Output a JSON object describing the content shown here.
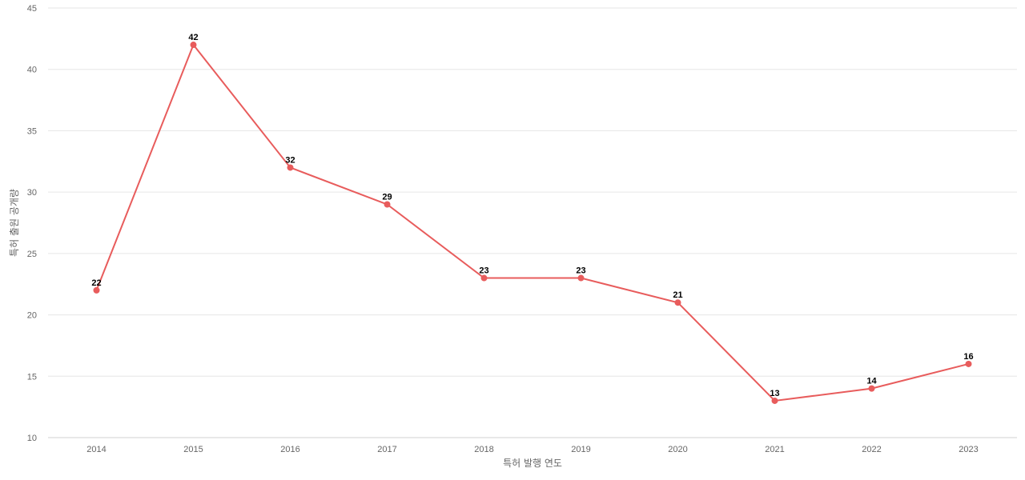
{
  "chart_data": {
    "type": "line",
    "title": "",
    "xlabel": "특허 발행 연도",
    "ylabel": "특허 출원 공개량",
    "x": [
      "2014",
      "2015",
      "2016",
      "2017",
      "2018",
      "2019",
      "2020",
      "2021",
      "2022",
      "2023"
    ],
    "series": [
      {
        "values": [
          22,
          42,
          32,
          29,
          23,
          23,
          21,
          13,
          14,
          16
        ],
        "color": "#e85c5c"
      }
    ],
    "ylim": [
      10,
      45
    ],
    "yticks": [
      10,
      15,
      20,
      25,
      30,
      35,
      40,
      45
    ],
    "grid": true,
    "legend": "none",
    "data_labels": true
  }
}
